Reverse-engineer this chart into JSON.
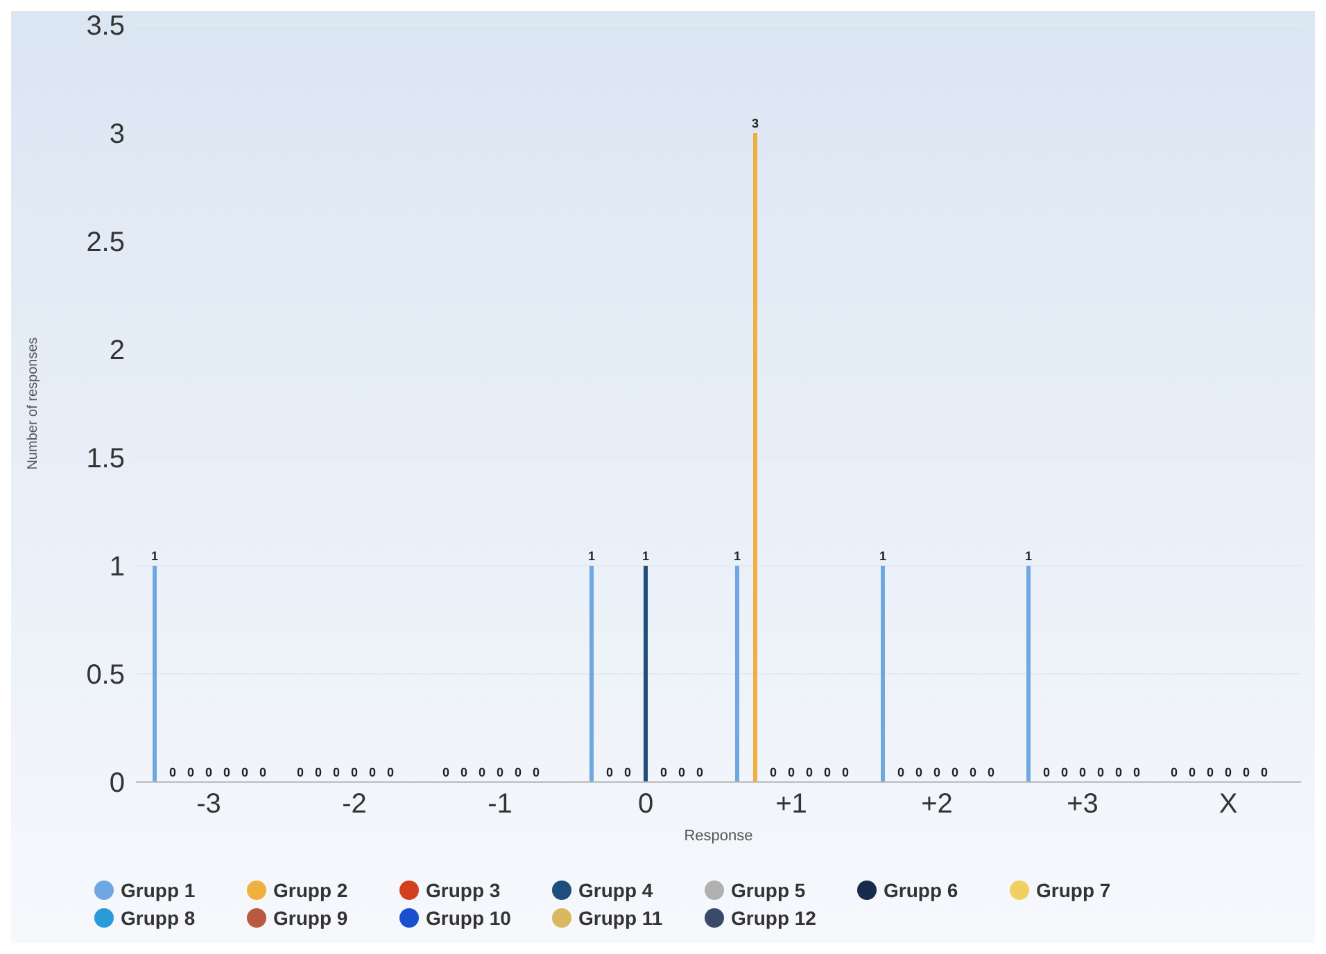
{
  "chart_data": {
    "type": "bar",
    "xlabel": "Response",
    "ylabel": "Number of responses",
    "categories": [
      "-3",
      "-2",
      "-1",
      "0",
      "+1",
      "+2",
      "+3",
      "X"
    ],
    "series": [
      {
        "name": "Grupp 1",
        "color": "#6fa8e0",
        "values": [
          1,
          0,
          0,
          1,
          1,
          1,
          1,
          0
        ]
      },
      {
        "name": "Grupp 2",
        "color": "#f0b040",
        "values": [
          0,
          0,
          0,
          0,
          3,
          0,
          0,
          0
        ]
      },
      {
        "name": "Grupp 3",
        "color": "#d4401c",
        "values": [
          0,
          0,
          0,
          0,
          0,
          0,
          0,
          0
        ]
      },
      {
        "name": "Grupp 4",
        "color": "#1d4e7c",
        "values": [
          0,
          0,
          0,
          1,
          0,
          0,
          0,
          0
        ]
      },
      {
        "name": "Grupp 5",
        "color": "#b0b0b0",
        "values": [
          0,
          0,
          0,
          0,
          0,
          0,
          0,
          0
        ]
      },
      {
        "name": "Grupp 6",
        "color": "#1a2a4a",
        "values": [
          0,
          0,
          0,
          0,
          0,
          0,
          0,
          0
        ]
      },
      {
        "name": "Grupp 7",
        "color": "#f0d060",
        "values": [
          0,
          null,
          null,
          0,
          0,
          0,
          0,
          null
        ]
      },
      {
        "name": "Grupp 8",
        "color": "#2a9ad8",
        "values": [
          null,
          null,
          null,
          null,
          null,
          null,
          null,
          null
        ]
      },
      {
        "name": "Grupp 9",
        "color": "#b85a40",
        "values": [
          null,
          null,
          null,
          null,
          null,
          null,
          null,
          null
        ]
      },
      {
        "name": "Grupp 10",
        "color": "#1a50d0",
        "values": [
          null,
          null,
          null,
          null,
          null,
          null,
          null,
          null
        ]
      },
      {
        "name": "Grupp 11",
        "color": "#d8b860",
        "values": [
          null,
          null,
          null,
          null,
          null,
          null,
          null,
          null
        ]
      },
      {
        "name": "Grupp 12",
        "color": "#3a4a6a",
        "values": [
          null,
          null,
          null,
          null,
          null,
          null,
          null,
          null
        ]
      }
    ],
    "ylim": [
      0,
      3.5
    ],
    "yticks": [
      0,
      0.5,
      1,
      1.5,
      2,
      2.5,
      3,
      3.5
    ],
    "grid": "y",
    "legend": "bottom",
    "data_labels": true
  }
}
